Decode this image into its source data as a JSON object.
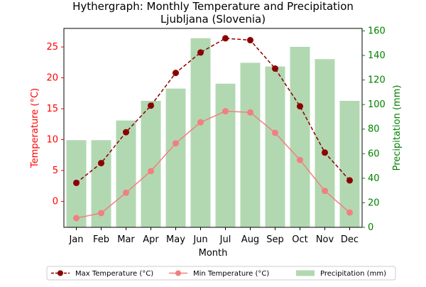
{
  "chart_data": {
    "type": "bar+line",
    "title_line1": "Hythergraph: Monthly Temperature and Precipitation",
    "title_line2": "Ljubljana (Slovenia)",
    "xlabel": "Month",
    "ylabel_left": "Temperature (°C)",
    "ylabel_right": "Precipitation (mm)",
    "categories": [
      "Jan",
      "Feb",
      "Mar",
      "Apr",
      "May",
      "Jun",
      "Jul",
      "Aug",
      "Sep",
      "Oct",
      "Nov",
      "Dec"
    ],
    "ylim_left": [
      -4.2,
      28.0
    ],
    "ylim_right": [
      0,
      162
    ],
    "left_ticks": [
      0,
      5,
      10,
      15,
      20,
      25
    ],
    "right_ticks": [
      0,
      20,
      40,
      60,
      80,
      100,
      120,
      140,
      160
    ],
    "grid": false,
    "legend_position": "bottom",
    "series": [
      {
        "name": "Max Temperature (°C)",
        "axis": "left",
        "kind": "line",
        "color": "#8b0000",
        "style": "dashed",
        "values": [
          3.0,
          6.2,
          11.2,
          15.5,
          20.8,
          24.1,
          26.4,
          26.1,
          21.5,
          15.4,
          7.9,
          3.4
        ]
      },
      {
        "name": "Min Temperature (°C)",
        "axis": "left",
        "kind": "line",
        "color": "#f08080",
        "style": "solid",
        "values": [
          -2.7,
          -1.9,
          1.4,
          4.9,
          9.4,
          12.8,
          14.6,
          14.4,
          11.1,
          6.7,
          1.7,
          -1.8
        ]
      },
      {
        "name": "Precipitation (mm)",
        "axis": "right",
        "kind": "bar",
        "color": "#b2d8b2",
        "values": [
          71,
          71,
          87,
          103,
          113,
          154,
          117,
          134,
          131,
          147,
          137,
          103
        ]
      }
    ]
  },
  "colors": {
    "left_axis": "#ff0000",
    "right_axis": "#008000"
  }
}
